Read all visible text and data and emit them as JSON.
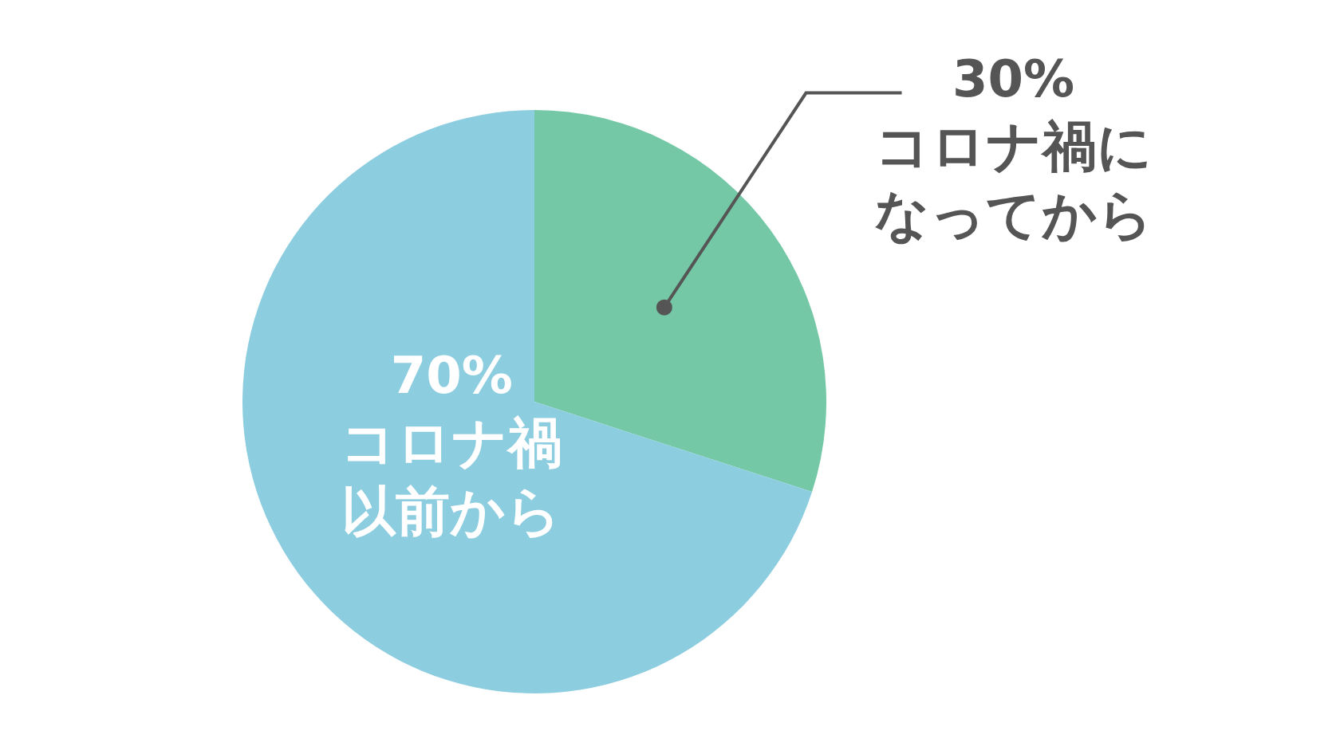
{
  "chart_data": {
    "type": "pie",
    "categories": [
      "コロナ禍になってから",
      "コロナ禍以前から"
    ],
    "values": [
      30,
      70
    ],
    "value_labels": [
      "30%",
      "70%"
    ],
    "colors": [
      "#74c8a6",
      "#8ccde0"
    ]
  }
}
